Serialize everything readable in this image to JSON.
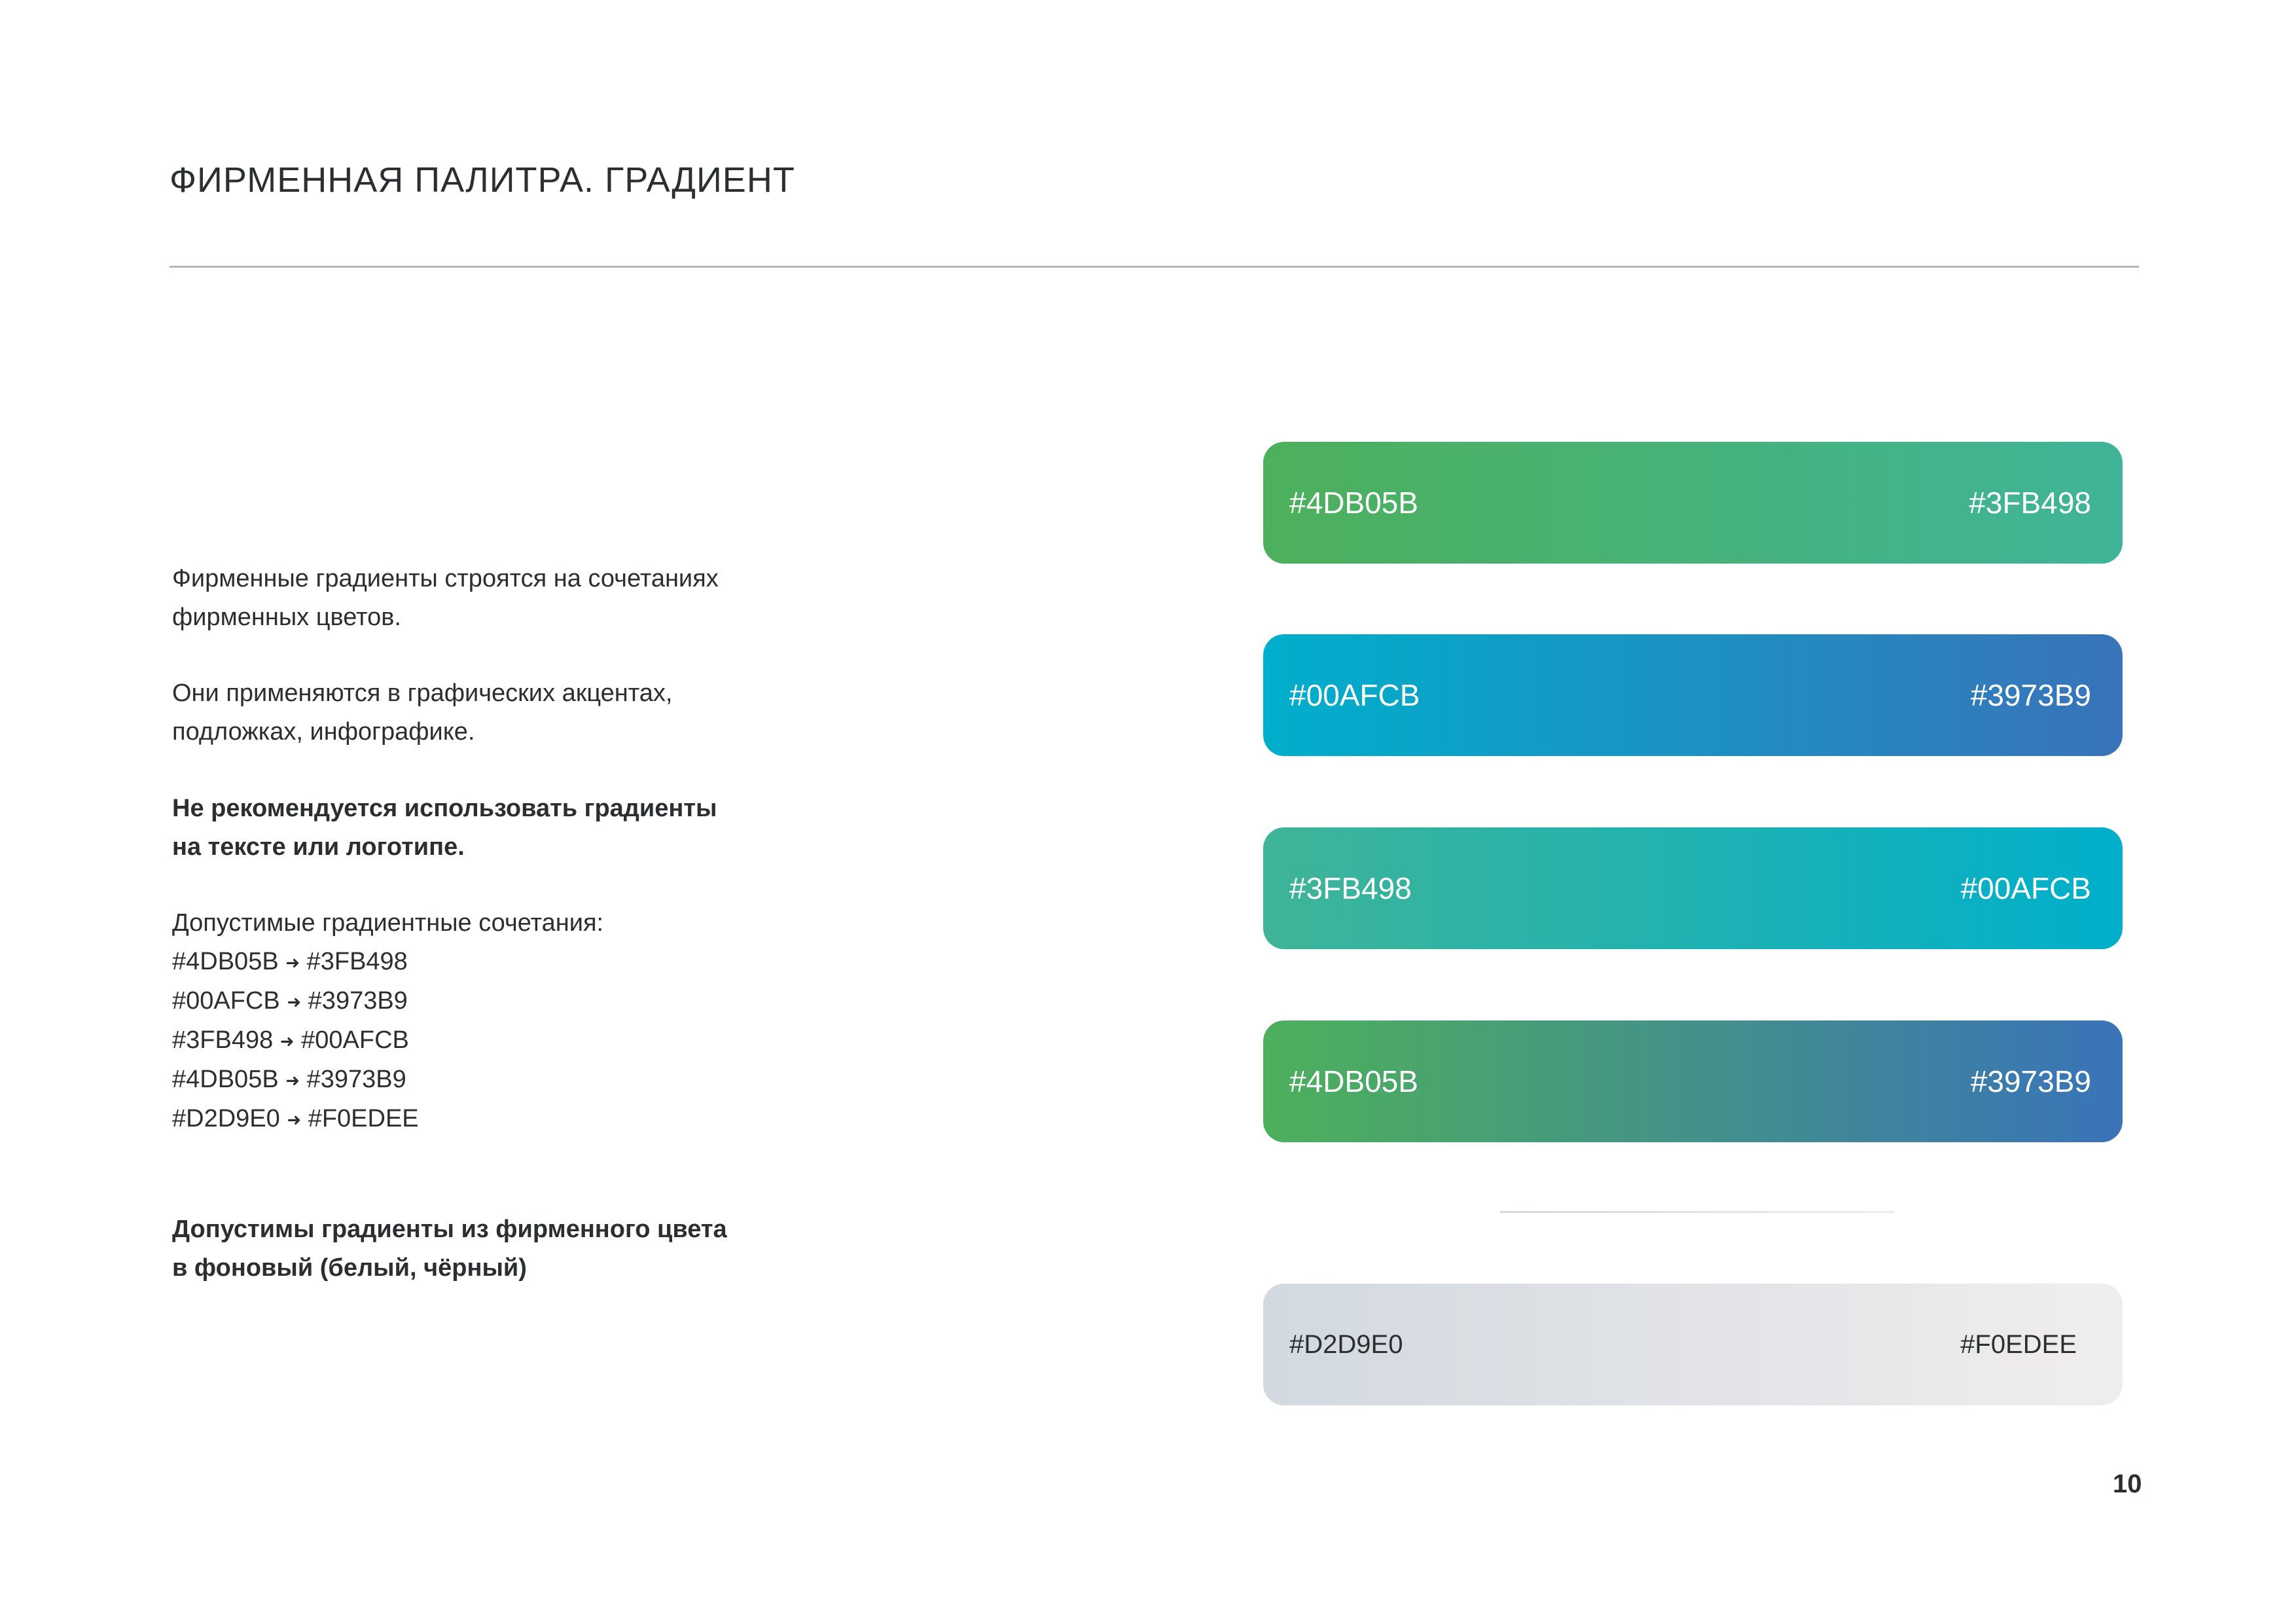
{
  "title": "ФИРМЕННАЯ ПАЛИТРА. ГРАДИЕНТ",
  "text": {
    "p1": [
      "Фирменные градиенты строятся на сочетаниях",
      "фирменных цветов."
    ],
    "p2": [
      "Они применяются в графических акцентах,",
      "подложках, инфографике."
    ],
    "p3": [
      "Не рекомендуется использовать градиенты",
      "на тексте или логотипе."
    ],
    "p4_label": "Допустимые градиентные сочетания:",
    "combinations": [
      {
        "from": "#4DB05B",
        "to": "#3FB498"
      },
      {
        "from": "#00AFCB",
        "to": "#3973B9"
      },
      {
        "from": "#3FB498",
        "to": "#00AFCB"
      },
      {
        "from": "#4DB05B",
        "to": "#3973B9"
      },
      {
        "from": "#D2D9E0",
        "to": "#F0EDEE"
      }
    ],
    "arrow": "➜",
    "p5": [
      "Допустимы градиенты из фирменного цвета",
      "в фоновый (белый, чёрный)"
    ]
  },
  "gradients": [
    {
      "from": "#4DB05B",
      "to": "#3FB498"
    },
    {
      "from": "#00AFCB",
      "to": "#3973B9"
    },
    {
      "from": "#3FB498",
      "to": "#00AFCB"
    },
    {
      "from": "#4DB05B",
      "to": "#3973B9"
    },
    {
      "from": "#D2D9E0",
      "to": "#F0EDEE"
    }
  ],
  "page_number": "10"
}
